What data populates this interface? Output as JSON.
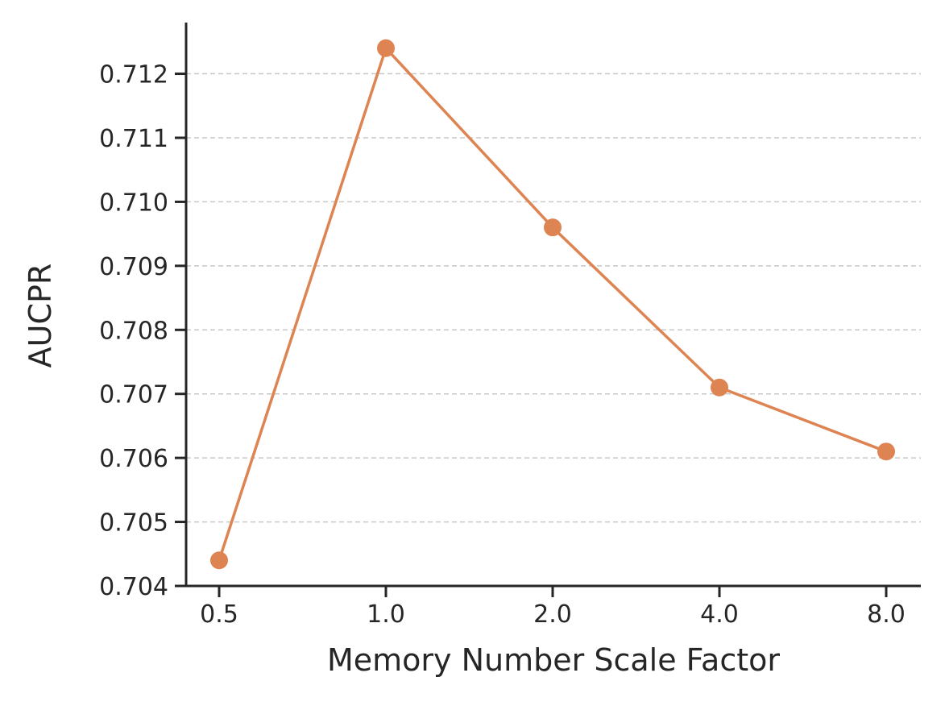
{
  "chart_data": {
    "type": "line",
    "title": "",
    "xlabel": "Memory Number Scale Factor",
    "ylabel": "AUCPR",
    "categories": [
      "0.5",
      "1.0",
      "2.0",
      "4.0",
      "8.0"
    ],
    "series": [
      {
        "values": [
          0.7044,
          0.7124,
          0.7096,
          0.7071,
          0.7061
        ],
        "color": "#dd8452",
        "marker": "circle"
      }
    ],
    "ylim": [
      0.704,
      0.7128
    ],
    "yticks": [
      "0.704",
      "0.705",
      "0.706",
      "0.707",
      "0.708",
      "0.709",
      "0.710",
      "0.711",
      "0.712"
    ],
    "grid": "y-dashed",
    "legend": "none"
  }
}
